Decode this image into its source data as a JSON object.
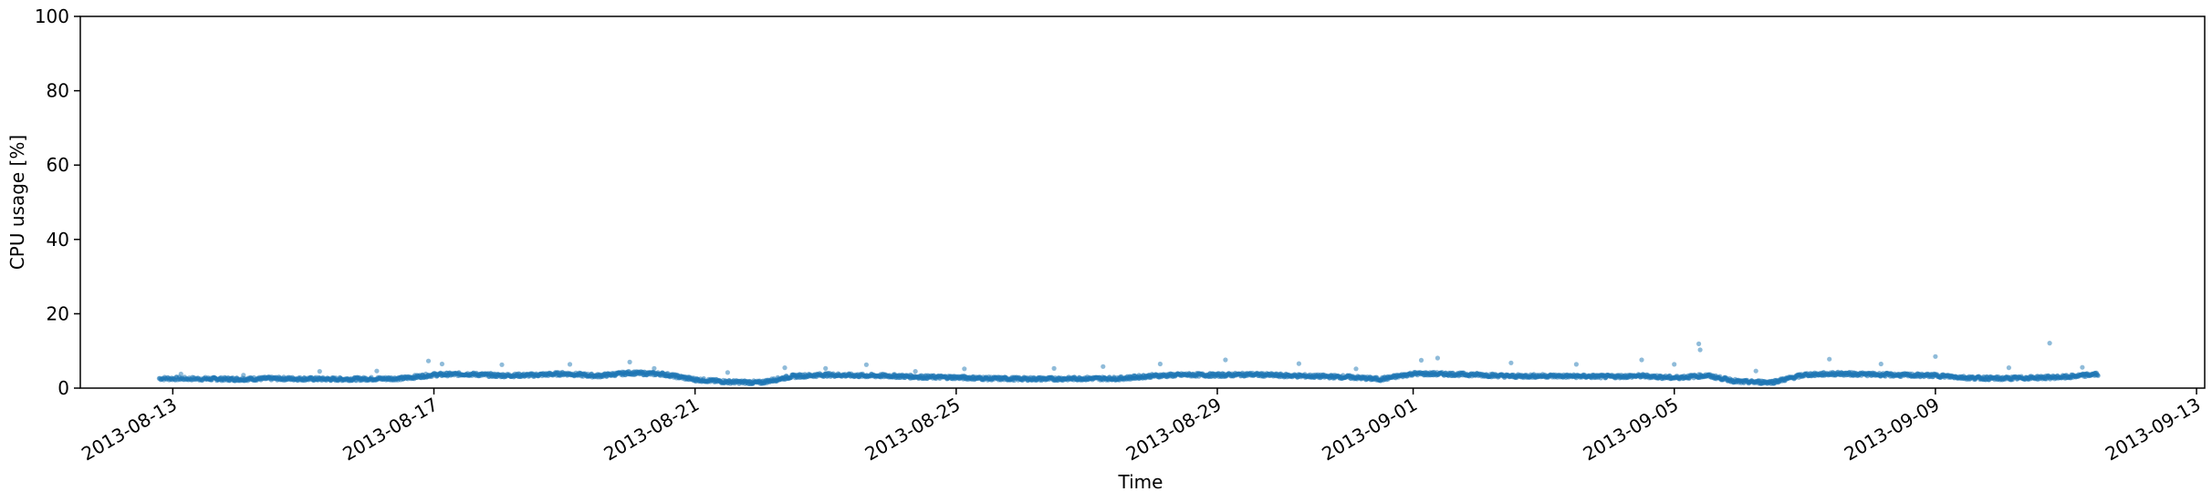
{
  "chart_data": {
    "type": "scatter",
    "title": "",
    "xlabel": "Time",
    "ylabel": "CPU usage [%]",
    "ylim": [
      0,
      100
    ],
    "xlim": [
      "2013-08-11T14:00",
      "2013-09-13T03:00"
    ],
    "grid": false,
    "marker_color": "#1f77b4",
    "y_ticks": [
      0,
      20,
      40,
      60,
      80,
      100
    ],
    "x_ticks": [
      "2013-08-13",
      "2013-08-17",
      "2013-08-21",
      "2013-08-25",
      "2013-08-29",
      "2013-09-01",
      "2013-09-05",
      "2013-09-09",
      "2013-09-13"
    ],
    "series": [
      {
        "x": [
          "2013-08-12T19:00",
          "2013-08-13T12:00",
          "2013-08-14T00:00",
          "2013-08-14T12:00",
          "2013-08-15T00:00",
          "2013-08-15T12:00",
          "2013-08-16T00:00",
          "2013-08-16T12:00",
          "2013-08-17T00:00",
          "2013-08-17T12:00",
          "2013-08-18T00:00",
          "2013-08-18T12:00",
          "2013-08-19T00:00",
          "2013-08-19T12:00",
          "2013-08-20T00:00",
          "2013-08-20T12:00",
          "2013-08-21T00:00",
          "2013-08-21T12:00",
          "2013-08-22T00:00",
          "2013-08-22T12:00",
          "2013-08-23T00:00",
          "2013-08-23T12:00",
          "2013-08-24T00:00",
          "2013-08-24T12:00",
          "2013-08-25T00:00",
          "2013-08-25T12:00",
          "2013-08-26T00:00",
          "2013-08-26T12:00",
          "2013-08-27T00:00",
          "2013-08-27T12:00",
          "2013-08-28T00:00",
          "2013-08-28T12:00",
          "2013-08-29T00:00",
          "2013-08-29T12:00",
          "2013-08-30T00:00",
          "2013-08-30T12:00",
          "2013-08-31T00:00",
          "2013-08-31T12:00",
          "2013-09-01T00:00",
          "2013-09-01T12:00",
          "2013-09-02T00:00",
          "2013-09-02T12:00",
          "2013-09-03T00:00",
          "2013-09-03T12:00",
          "2013-09-04T00:00",
          "2013-09-04T12:00",
          "2013-09-05T00:00",
          "2013-09-05T12:00",
          "2013-09-06T00:00",
          "2013-09-06T12:00",
          "2013-09-07T00:00",
          "2013-09-07T12:00",
          "2013-09-08T00:00",
          "2013-09-08T12:00",
          "2013-09-09T00:00",
          "2013-09-09T12:00",
          "2013-09-10T00:00",
          "2013-09-10T12:00",
          "2013-09-11T00:00",
          "2013-09-11T12:00"
        ],
        "y": [
          2.6,
          2.5,
          2.4,
          2.6,
          2.5,
          2.4,
          2.5,
          2.6,
          3.6,
          3.8,
          3.4,
          3.5,
          3.9,
          3.3,
          4.1,
          3.8,
          2.3,
          1.7,
          1.5,
          3.2,
          3.6,
          3.4,
          3.3,
          3.0,
          2.9,
          2.6,
          2.5,
          2.5,
          2.6,
          2.6,
          3.3,
          3.6,
          3.5,
          3.7,
          3.4,
          3.2,
          3.0,
          2.4,
          3.9,
          3.8,
          3.6,
          3.2,
          3.3,
          3.2,
          3.1,
          3.3,
          2.8,
          3.4,
          1.7,
          1.6,
          3.6,
          3.9,
          3.7,
          3.5,
          3.4,
          2.8,
          2.6,
          2.8,
          3.0,
          3.8
        ]
      }
    ],
    "outliers": {
      "x": [
        "2013-08-13T03:00",
        "2013-08-14T02:00",
        "2013-08-15T06:00",
        "2013-08-16T03:00",
        "2013-08-16T22:00",
        "2013-08-17T03:00",
        "2013-08-18T01:00",
        "2013-08-19T02:00",
        "2013-08-20T00:00",
        "2013-08-20T09:00",
        "2013-08-21T12:00",
        "2013-08-22T09:00",
        "2013-08-23T00:00",
        "2013-08-23T15:00",
        "2013-08-24T09:00",
        "2013-08-25T03:00",
        "2013-08-26T12:00",
        "2013-08-27T06:00",
        "2013-08-28T03:00",
        "2013-08-29T03:00",
        "2013-08-30T06:00",
        "2013-08-31T03:00",
        "2013-09-01T03:00",
        "2013-09-01T09:00",
        "2013-09-02T12:00",
        "2013-09-03T12:00",
        "2013-09-04T12:00",
        "2013-09-05T00:00",
        "2013-09-05T09:00",
        "2013-09-05T09:30",
        "2013-09-06T06:00",
        "2013-09-07T09:00",
        "2013-09-08T04:00",
        "2013-09-09T00:00",
        "2013-09-10T03:00",
        "2013-09-10T18:00",
        "2013-09-11T06:00"
      ],
      "y": [
        3.8,
        3.5,
        4.5,
        4.6,
        7.3,
        6.5,
        6.3,
        6.4,
        7.0,
        5.3,
        4.2,
        5.5,
        5.3,
        6.3,
        4.5,
        5.2,
        5.3,
        5.8,
        6.5,
        7.6,
        6.6,
        5.2,
        7.5,
        8.1,
        6.8,
        6.4,
        7.6,
        6.4,
        11.9,
        10.3,
        4.6,
        7.8,
        6.5,
        8.5,
        5.5,
        12.1,
        5.6
      ]
    }
  }
}
